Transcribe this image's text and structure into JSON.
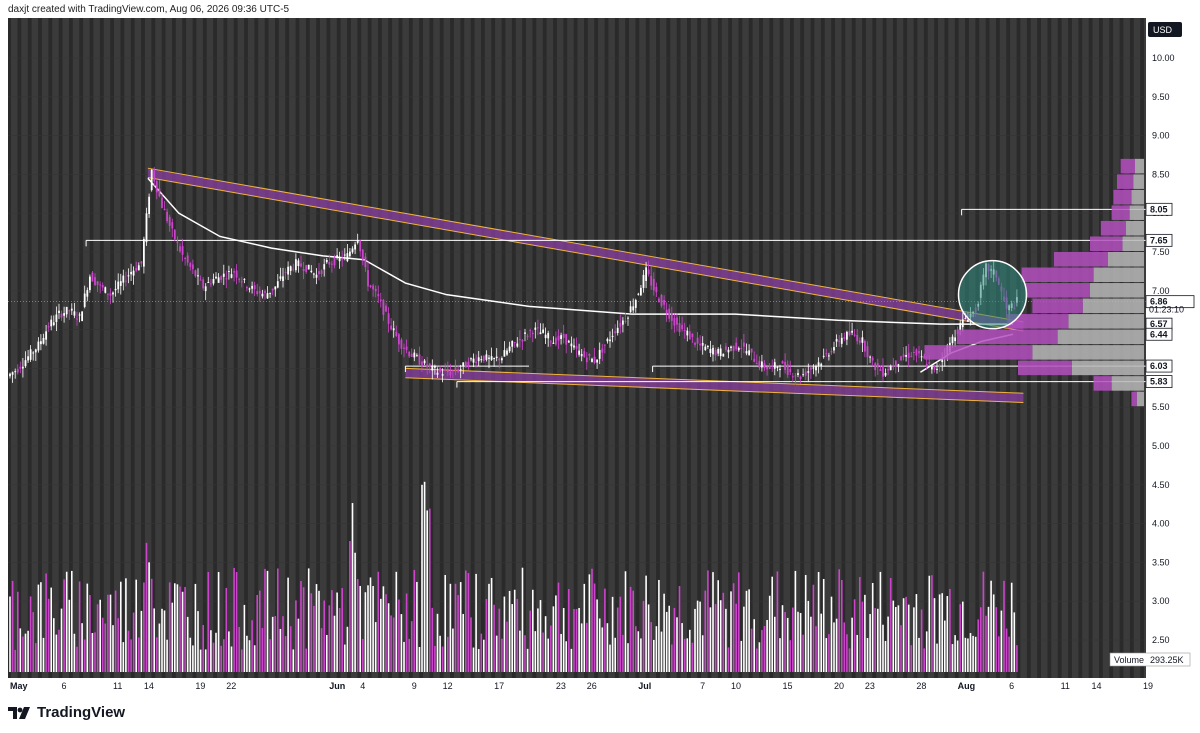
{
  "header": {
    "created_by": "daxjt created with TradingView.com, Aug 06, 2026 09:36 UTC-5"
  },
  "footer": {
    "brand": "TradingView"
  },
  "price_axis": {
    "currency": "USD",
    "ticks": [
      "10.00",
      "9.50",
      "9.00",
      "8.50",
      "8.00",
      "7.50",
      "7.00",
      "6.50",
      "6.00",
      "5.50",
      "5.00",
      "4.50",
      "4.00",
      "3.50",
      "3.00",
      "2.50"
    ],
    "volume_label": "Volume",
    "volume_value": "293.25K"
  },
  "price_labels": [
    {
      "value": 8.05,
      "text": "8.05",
      "style": "white-box"
    },
    {
      "value": 7.65,
      "text": "7.65",
      "style": "white-box"
    },
    {
      "value": 6.86,
      "text": "6.86",
      "style": "current"
    },
    {
      "value": 6.76,
      "text": "01:23:10",
      "style": "countdown"
    },
    {
      "value": 6.57,
      "text": "6.57",
      "style": "white-box"
    },
    {
      "value": 6.44,
      "text": "6.44",
      "style": "white-box"
    },
    {
      "value": 6.03,
      "text": "6.03",
      "style": "white-box"
    },
    {
      "value": 5.83,
      "text": "5.83",
      "style": "white-box"
    }
  ],
  "time_axis": {
    "labels": [
      {
        "text": "May",
        "day": 0,
        "bold": true
      },
      {
        "text": "6",
        "day": 5
      },
      {
        "text": "11",
        "day": 10
      },
      {
        "text": "14",
        "day": 13
      },
      {
        "text": "19",
        "day": 18
      },
      {
        "text": "22",
        "day": 21
      },
      {
        "text": "Jun",
        "day": 31,
        "bold": true
      },
      {
        "text": "4",
        "day": 34
      },
      {
        "text": "9",
        "day": 39
      },
      {
        "text": "12",
        "day": 42
      },
      {
        "text": "17",
        "day": 47
      },
      {
        "text": "23",
        "day": 53
      },
      {
        "text": "26",
        "day": 56
      },
      {
        "text": "Jul",
        "day": 61,
        "bold": true
      },
      {
        "text": "7",
        "day": 67
      },
      {
        "text": "10",
        "day": 70
      },
      {
        "text": "15",
        "day": 75
      },
      {
        "text": "20",
        "day": 80
      },
      {
        "text": "23",
        "day": 83
      },
      {
        "text": "28",
        "day": 88
      },
      {
        "text": "Aug",
        "day": 92,
        "bold": true
      },
      {
        "text": "6",
        "day": 97
      },
      {
        "text": "11",
        "day": 102
      },
      {
        "text": "14",
        "day": 105
      },
      {
        "text": "19",
        "day": 110
      }
    ]
  },
  "colors": {
    "background": "#2a2a2a",
    "session_band": "#3b3b3b",
    "bull": "#ffffff",
    "bear": "#cc44cc",
    "candle_main": "#e6c8e6",
    "channel_fill": "#8a3fa0",
    "channel_line": "#f0b43c",
    "vwap": "#ffffff",
    "circle": "#2f8a80",
    "volume_bull": "#ffffff",
    "volume_bear": "#cc44cc"
  },
  "chart_data": {
    "type": "candlestick",
    "symbol_currency": "USD",
    "ylim": [
      2.2,
      10.35
    ],
    "daily_close": [
      {
        "day": 0,
        "close": 6.0
      },
      {
        "day": 1,
        "close": 6.15
      },
      {
        "day": 2,
        "close": 6.3
      },
      {
        "day": 3,
        "close": 6.55
      },
      {
        "day": 4,
        "close": 6.7
      },
      {
        "day": 5,
        "close": 6.75
      },
      {
        "day": 6,
        "close": 6.65
      },
      {
        "day": 7,
        "close": 7.2
      },
      {
        "day": 8,
        "close": 7.05
      },
      {
        "day": 9,
        "close": 6.95
      },
      {
        "day": 10,
        "close": 7.1
      },
      {
        "day": 11,
        "close": 7.25
      },
      {
        "day": 12,
        "close": 7.35
      },
      {
        "day": 13,
        "close": 8.55
      },
      {
        "day": 14,
        "close": 8.1
      },
      {
        "day": 15,
        "close": 7.75
      },
      {
        "day": 16,
        "close": 7.45
      },
      {
        "day": 17,
        "close": 7.25
      },
      {
        "day": 18,
        "close": 7.05
      },
      {
        "day": 19,
        "close": 7.15
      },
      {
        "day": 20,
        "close": 7.2
      },
      {
        "day": 21,
        "close": 7.25
      },
      {
        "day": 22,
        "close": 7.1
      },
      {
        "day": 23,
        "close": 7.0
      },
      {
        "day": 24,
        "close": 6.95
      },
      {
        "day": 25,
        "close": 7.05
      },
      {
        "day": 26,
        "close": 7.25
      },
      {
        "day": 27,
        "close": 7.35
      },
      {
        "day": 28,
        "close": 7.3
      },
      {
        "day": 29,
        "close": 7.2
      },
      {
        "day": 30,
        "close": 7.35
      },
      {
        "day": 31,
        "close": 7.4
      },
      {
        "day": 32,
        "close": 7.45
      },
      {
        "day": 33,
        "close": 7.7
      },
      {
        "day": 34,
        "close": 7.1
      },
      {
        "day": 35,
        "close": 6.9
      },
      {
        "day": 36,
        "close": 6.6
      },
      {
        "day": 37,
        "close": 6.35
      },
      {
        "day": 38,
        "close": 6.2
      },
      {
        "day": 39,
        "close": 6.1
      },
      {
        "day": 40,
        "close": 6.0
      },
      {
        "day": 41,
        "close": 5.95
      },
      {
        "day": 42,
        "close": 5.95
      },
      {
        "day": 43,
        "close": 6.0
      },
      {
        "day": 44,
        "close": 6.1
      },
      {
        "day": 45,
        "close": 6.15
      },
      {
        "day": 46,
        "close": 6.1
      },
      {
        "day": 47,
        "close": 6.15
      },
      {
        "day": 48,
        "close": 6.3
      },
      {
        "day": 49,
        "close": 6.4
      },
      {
        "day": 50,
        "close": 6.5
      },
      {
        "day": 51,
        "close": 6.45
      },
      {
        "day": 52,
        "close": 6.35
      },
      {
        "day": 53,
        "close": 6.4
      },
      {
        "day": 54,
        "close": 6.25
      },
      {
        "day": 55,
        "close": 6.15
      },
      {
        "day": 56,
        "close": 6.1
      },
      {
        "day": 57,
        "close": 6.3
      },
      {
        "day": 58,
        "close": 6.5
      },
      {
        "day": 59,
        "close": 6.65
      },
      {
        "day": 60,
        "close": 6.9
      },
      {
        "day": 61,
        "close": 7.25
      },
      {
        "day": 62,
        "close": 6.95
      },
      {
        "day": 63,
        "close": 6.75
      },
      {
        "day": 64,
        "close": 6.55
      },
      {
        "day": 65,
        "close": 6.45
      },
      {
        "day": 66,
        "close": 6.3
      },
      {
        "day": 67,
        "close": 6.25
      },
      {
        "day": 68,
        "close": 6.2
      },
      {
        "day": 69,
        "close": 6.25
      },
      {
        "day": 70,
        "close": 6.3
      },
      {
        "day": 71,
        "close": 6.2
      },
      {
        "day": 72,
        "close": 6.05
      },
      {
        "day": 73,
        "close": 6.0
      },
      {
        "day": 74,
        "close": 6.05
      },
      {
        "day": 75,
        "close": 5.95
      },
      {
        "day": 76,
        "close": 5.9
      },
      {
        "day": 77,
        "close": 6.0
      },
      {
        "day": 78,
        "close": 6.1
      },
      {
        "day": 79,
        "close": 6.25
      },
      {
        "day": 80,
        "close": 6.4
      },
      {
        "day": 81,
        "close": 6.45
      },
      {
        "day": 82,
        "close": 6.35
      },
      {
        "day": 83,
        "close": 6.05
      },
      {
        "day": 84,
        "close": 5.95
      },
      {
        "day": 85,
        "close": 6.05
      },
      {
        "day": 86,
        "close": 6.15
      },
      {
        "day": 87,
        "close": 6.2
      },
      {
        "day": 88,
        "close": 6.1
      },
      {
        "day": 89,
        "close": 5.95
      },
      {
        "day": 90,
        "close": 6.2
      },
      {
        "day": 91,
        "close": 6.45
      },
      {
        "day": 92,
        "close": 6.65
      },
      {
        "day": 93,
        "close": 6.75
      },
      {
        "day": 94,
        "close": 7.3
      },
      {
        "day": 95,
        "close": 7.2
      },
      {
        "day": 96,
        "close": 6.75
      },
      {
        "day": 97,
        "close": 6.86
      }
    ],
    "anchored_vwap": [
      {
        "day": 13,
        "value": 8.45
      },
      {
        "day": 16,
        "value": 8.0
      },
      {
        "day": 20,
        "value": 7.7
      },
      {
        "day": 25,
        "value": 7.55
      },
      {
        "day": 30,
        "value": 7.45
      },
      {
        "day": 34,
        "value": 7.4
      },
      {
        "day": 38,
        "value": 7.1
      },
      {
        "day": 42,
        "value": 6.95
      },
      {
        "day": 50,
        "value": 6.8
      },
      {
        "day": 60,
        "value": 6.7
      },
      {
        "day": 70,
        "value": 6.7
      },
      {
        "day": 80,
        "value": 6.62
      },
      {
        "day": 90,
        "value": 6.57
      },
      {
        "day": 97,
        "value": 6.57
      }
    ],
    "lower_vwap": [
      {
        "day": 88,
        "value": 5.95
      },
      {
        "day": 91,
        "value": 6.2
      },
      {
        "day": 94,
        "value": 6.35
      },
      {
        "day": 97,
        "value": 6.44
      }
    ],
    "descending_channel": {
      "start": {
        "day": 13,
        "value": 8.58
      },
      "end": {
        "day": 98,
        "value": 6.6
      },
      "band_width": 0.12
    },
    "falling_wedge_support": {
      "start": {
        "day": 38,
        "value": 6.0
      },
      "end": {
        "day": 98,
        "value": 5.68
      },
      "band_width": 0.12
    },
    "horizontal_levels": [
      {
        "value": 8.05,
        "from_day": 92
      },
      {
        "value": 7.65,
        "from_day": 7
      },
      {
        "value": 6.03,
        "from_day": 62
      },
      {
        "value": 5.83,
        "from_day": 43
      },
      {
        "value": 6.03,
        "from_day": 38,
        "to_day": 50
      }
    ],
    "highlight_circle": {
      "day": 95,
      "value": 6.95
    },
    "volume": {
      "unit": "K",
      "last": 293.25,
      "bars_per_day": 4
    },
    "volume_profile": [
      {
        "price": 8.6,
        "up": 0.05,
        "down": 0.08
      },
      {
        "price": 8.4,
        "up": 0.06,
        "down": 0.09
      },
      {
        "price": 8.2,
        "up": 0.07,
        "down": 0.1
      },
      {
        "price": 8.0,
        "up": 0.08,
        "down": 0.1
      },
      {
        "price": 7.8,
        "up": 0.1,
        "down": 0.14
      },
      {
        "price": 7.6,
        "up": 0.12,
        "down": 0.18
      },
      {
        "price": 7.4,
        "up": 0.2,
        "down": 0.3
      },
      {
        "price": 7.2,
        "up": 0.28,
        "down": 0.4
      },
      {
        "price": 7.0,
        "up": 0.3,
        "down": 0.36
      },
      {
        "price": 6.8,
        "up": 0.34,
        "down": 0.28
      },
      {
        "price": 6.6,
        "up": 0.42,
        "down": 0.34
      },
      {
        "price": 6.4,
        "up": 0.48,
        "down": 0.56
      },
      {
        "price": 6.2,
        "up": 0.62,
        "down": 0.6
      },
      {
        "price": 6.0,
        "up": 0.4,
        "down": 0.3
      },
      {
        "price": 5.8,
        "up": 0.18,
        "down": 0.1
      },
      {
        "price": 5.6,
        "up": 0.04,
        "down": 0.03
      }
    ]
  }
}
